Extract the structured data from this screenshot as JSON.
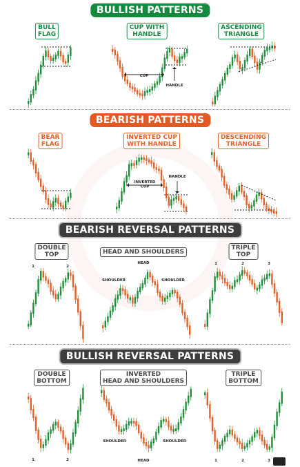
{
  "sections": [
    {
      "title": "BULLISH PATTERNS",
      "style": "green",
      "patterns": [
        {
          "label": "BULL\nFLAG"
        },
        {
          "label": "CUP WITH\nHANDLE",
          "annotations": [
            "CUP",
            "HANDLE"
          ]
        },
        {
          "label": "ASCENDING\nTRIANGLE"
        }
      ]
    },
    {
      "title": "BEARISH PATTERNS",
      "style": "orange",
      "patterns": [
        {
          "label": "BEAR\nFLAG"
        },
        {
          "label": "INVERTED CUP\nWITH HANDLE",
          "annotations": [
            "INVERTED\nCUP",
            "HANDLE"
          ]
        },
        {
          "label": "DESCENDING\nTRIANGLE"
        }
      ]
    },
    {
      "title": "BEARISH REVERSAL PATTERNS",
      "style": "dark",
      "patterns": [
        {
          "label": "DOUBLE\nTOP",
          "annotations": [
            "1",
            "2"
          ]
        },
        {
          "label": "HEAD AND SHOULDERS",
          "annotations": [
            "HEAD",
            "SHOULDER",
            "SHOULDER"
          ]
        },
        {
          "label": "TRIPLE\nTOP",
          "annotations": [
            "1",
            "2",
            "3"
          ]
        }
      ]
    },
    {
      "title": "BULLISH REVERSAL PATTERNS",
      "style": "dark",
      "patterns": [
        {
          "label": "DOUBLE\nBOTTOM",
          "annotations": [
            "1",
            "2"
          ]
        },
        {
          "label": "INVERTED\nHEAD AND SHOULDERS",
          "annotations": [
            "HEAD",
            "SHOULDER",
            "SHOULDER"
          ]
        },
        {
          "label": "TRIPLE\nBOTTOM",
          "annotations": [
            "1",
            "2",
            "3"
          ]
        }
      ]
    }
  ],
  "colors": {
    "bull": "#1f8f3a",
    "bear": "#e0622a",
    "green_title": "#138a3e",
    "orange_title": "#e25a23",
    "dark_title": "#3d3d3d"
  }
}
